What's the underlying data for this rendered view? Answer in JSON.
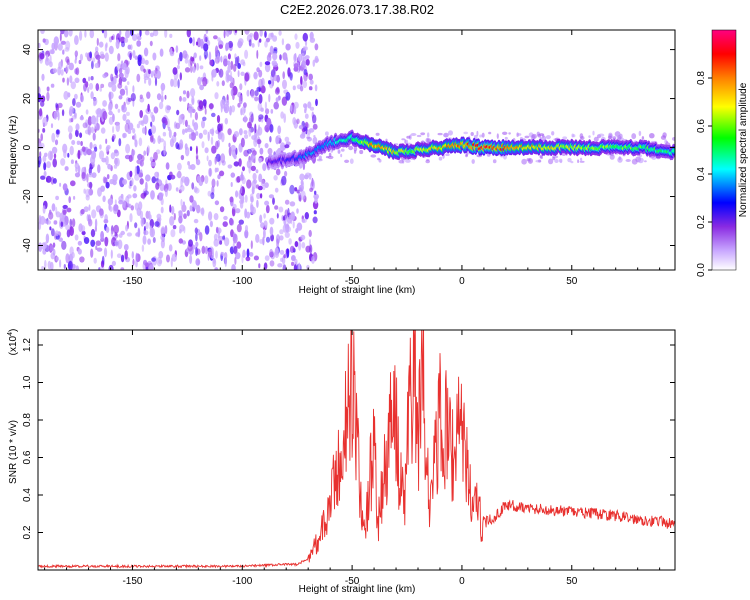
{
  "figure": {
    "title": "C2E2.2026.073.17.38.R02"
  },
  "chart_data": [
    {
      "type": "heatmap",
      "name": "spectrogram",
      "xlabel": "Height of straight line (km)",
      "ylabel": "Frequency (Hz)",
      "xlim": [
        -193,
        97
      ],
      "ylim": [
        -50,
        48
      ],
      "xticks": [
        -150,
        -100,
        -50,
        0,
        50
      ],
      "yticks": [
        -40,
        -20,
        0,
        20,
        40
      ],
      "colorbar": {
        "label": "Normalized spectral amplitude",
        "range": [
          0,
          1
        ],
        "ticks": [
          "0.0",
          "0.2",
          "0.4",
          "0.6",
          "0.8"
        ],
        "colormap": "rainbow",
        "colors": [
          "#ffffff",
          "#8a2be2",
          "#0000ff",
          "#00ffff",
          "#00ff00",
          "#ffff00",
          "#ff8000",
          "#ff0000",
          "#ff0080"
        ]
      },
      "noise_region_x": [
        -193,
        -70
      ],
      "signal_ridge": [
        {
          "x": -88,
          "freq": -6,
          "amp": 0.3
        },
        {
          "x": -78,
          "freq": -5,
          "amp": 0.35
        },
        {
          "x": -70,
          "freq": -3,
          "amp": 0.45
        },
        {
          "x": -60,
          "freq": 2,
          "amp": 0.5
        },
        {
          "x": -50,
          "freq": 4,
          "amp": 0.6
        },
        {
          "x": -40,
          "freq": 1,
          "amp": 0.85
        },
        {
          "x": -30,
          "freq": -2,
          "amp": 0.75
        },
        {
          "x": -20,
          "freq": -1,
          "amp": 0.7
        },
        {
          "x": -10,
          "freq": 0,
          "amp": 0.8
        },
        {
          "x": 0,
          "freq": 1,
          "amp": 0.85
        },
        {
          "x": 10,
          "freq": 0,
          "amp": 0.9
        },
        {
          "x": 20,
          "freq": 0,
          "amp": 0.85
        },
        {
          "x": 40,
          "freq": 0,
          "amp": 0.75
        },
        {
          "x": 60,
          "freq": 0,
          "amp": 0.7
        },
        {
          "x": 80,
          "freq": 0,
          "amp": 0.65
        },
        {
          "x": 97,
          "freq": -2,
          "amp": 0.6
        }
      ]
    },
    {
      "type": "line",
      "name": "snr",
      "xlabel": "Height of straight line (km)",
      "ylabel": "SNR (10 * v/v)",
      "yscale_label": "(x10",
      "yscale_exp": "4",
      "xlim": [
        -193,
        97
      ],
      "ylim": [
        0,
        1.28
      ],
      "xticks": [
        -150,
        -100,
        -50,
        0,
        50
      ],
      "yticks": [
        0.2,
        0.4,
        0.6,
        0.8,
        1.0,
        1.2
      ],
      "ytick_labels": [
        "0.2",
        "0.4",
        "0.6",
        "0.8",
        "1.0",
        "1.2"
      ],
      "color": "#e8312f",
      "x": [
        -193,
        -160,
        -130,
        -100,
        -80,
        -75,
        -70,
        -66,
        -62,
        -60,
        -58,
        -56,
        -54,
        -52,
        -50,
        -48,
        -46,
        -44,
        -42,
        -40,
        -38,
        -36,
        -34,
        -32,
        -30,
        -28,
        -26,
        -24,
        -22,
        -20,
        -18,
        -16,
        -14,
        -12,
        -10,
        -8,
        -6,
        -4,
        -2,
        0,
        2,
        4,
        6,
        8,
        10,
        15,
        20,
        25,
        30,
        40,
        50,
        60,
        70,
        80,
        90,
        97
      ],
      "y": [
        0.02,
        0.02,
        0.02,
        0.02,
        0.03,
        0.03,
        0.06,
        0.15,
        0.25,
        0.35,
        0.45,
        0.55,
        0.7,
        0.85,
        1.04,
        0.7,
        0.35,
        0.2,
        0.5,
        0.62,
        0.25,
        0.45,
        0.6,
        0.9,
        0.75,
        0.45,
        0.35,
        0.88,
        1.1,
        0.6,
        1.29,
        0.5,
        0.35,
        0.6,
        0.8,
        0.65,
        0.9,
        0.55,
        0.85,
        0.78,
        0.55,
        0.42,
        0.35,
        0.28,
        0.25,
        0.28,
        0.35,
        0.34,
        0.33,
        0.32,
        0.31,
        0.3,
        0.29,
        0.27,
        0.26,
        0.24
      ]
    }
  ]
}
